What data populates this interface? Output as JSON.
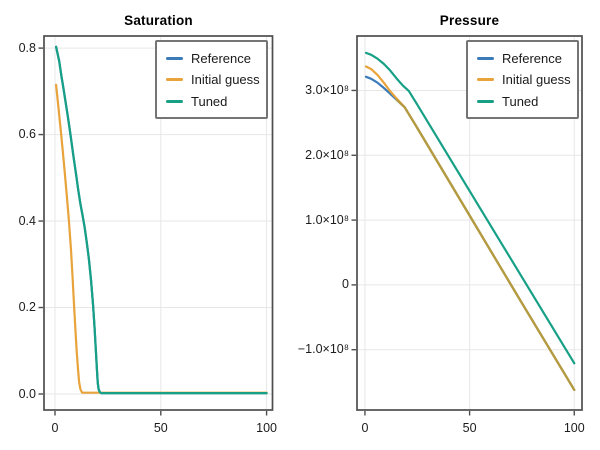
{
  "figure": {
    "background": "#ffffff"
  },
  "colors": {
    "reference": "#3B7BB9",
    "initial_guess": "#E8A33B",
    "tuned": "#17A086",
    "reference_initial_overlap": "#B49B3F",
    "spine": "#4E4E4E",
    "grid": "#E7E7E7",
    "legend_border": "#757575",
    "text": "#1C1C1C"
  },
  "legend": {
    "entries": [
      {
        "label": "Reference",
        "color_key": "reference"
      },
      {
        "label": "Initial guess",
        "color_key": "initial_guess"
      },
      {
        "label": "Tuned",
        "color_key": "tuned"
      }
    ]
  },
  "chart_data": [
    {
      "id": "saturation",
      "type": "line",
      "title": "Saturation",
      "xlabel": "",
      "ylabel": "",
      "xlim": [
        -5.2,
        102.8
      ],
      "ylim": [
        -0.037,
        0.828
      ],
      "grid": true,
      "legend_position": "top-right",
      "xticks": {
        "values": [
          0,
          50,
          100
        ],
        "labels": [
          "0",
          "50",
          "100"
        ]
      },
      "yticks": {
        "values": [
          0,
          0.2,
          0.4,
          0.6,
          0.8
        ],
        "labels": [
          "0.0",
          "0.2",
          "0.4",
          "0.6",
          "0.8"
        ]
      },
      "series": [
        {
          "name": "Reference",
          "color_key": "reference",
          "x": [
            0.5,
            2,
            3,
            4,
            5,
            6,
            7,
            8,
            9,
            10,
            11,
            12,
            13,
            14,
            15,
            16,
            17,
            18,
            18.7,
            19.3,
            19.8,
            20.2,
            20.6,
            21.2,
            22,
            100
          ],
          "y": [
            0.803,
            0.77,
            0.737,
            0.706,
            0.675,
            0.644,
            0.611,
            0.576,
            0.541,
            0.506,
            0.471,
            0.44,
            0.414,
            0.386,
            0.352,
            0.312,
            0.264,
            0.205,
            0.152,
            0.103,
            0.058,
            0.027,
            0.011,
            0.004,
            0.002,
            0.002
          ]
        },
        {
          "name": "Initial guess",
          "color_key": "initial_guess",
          "x": [
            0.5,
            1.5,
            2.5,
            3.5,
            4.5,
            5.5,
            6.5,
            7.5,
            8.3,
            9,
            9.7,
            10.3,
            10.9,
            11.4,
            12,
            12.8,
            100
          ],
          "y": [
            0.715,
            0.668,
            0.62,
            0.571,
            0.519,
            0.464,
            0.404,
            0.337,
            0.269,
            0.207,
            0.146,
            0.095,
            0.055,
            0.028,
            0.011,
            0.003,
            0.003
          ]
        },
        {
          "name": "Tuned",
          "color_key": "tuned",
          "x": [
            0.5,
            2,
            3,
            4,
            5,
            6,
            7,
            8,
            9,
            10,
            11,
            12,
            13,
            14,
            15,
            16,
            17,
            18,
            18.7,
            19.3,
            19.8,
            20.2,
            20.6,
            21.2,
            22,
            100
          ],
          "y": [
            0.803,
            0.77,
            0.737,
            0.706,
            0.675,
            0.644,
            0.611,
            0.576,
            0.541,
            0.506,
            0.471,
            0.44,
            0.414,
            0.386,
            0.352,
            0.312,
            0.264,
            0.205,
            0.152,
            0.103,
            0.058,
            0.027,
            0.011,
            0.004,
            0.002,
            0.002
          ]
        }
      ]
    },
    {
      "id": "pressure",
      "type": "line",
      "title": "Pressure",
      "xlabel": "",
      "ylabel": "",
      "y_unit": "×10⁸",
      "xlim": [
        -3.8,
        103.7
      ],
      "ylim": [
        -1.93,
        3.84
      ],
      "grid": true,
      "legend_position": "top-right",
      "xticks": {
        "values": [
          0,
          50,
          100
        ],
        "labels": [
          "0",
          "50",
          "100"
        ]
      },
      "yticks": {
        "values": [
          -1,
          0,
          1,
          2,
          3
        ],
        "labels": [
          "−1.0×10⁸",
          "0",
          "1.0×10⁸",
          "2.0×10⁸",
          "3.0×10⁸"
        ]
      },
      "overlap": {
        "series": "Reference",
        "start_x": 15,
        "color_key": "reference_initial_overlap",
        "note": "Reference and Initial guess curves coincide beyond x≈15"
      },
      "series": [
        {
          "name": "Reference",
          "color_key": "reference",
          "x": [
            0.5,
            3,
            6,
            9,
            12,
            15,
            19,
            25,
            50,
            75,
            100
          ],
          "y": [
            3.21,
            3.18,
            3.12,
            3.04,
            2.95,
            2.86,
            2.74,
            2.42,
            1.07,
            -0.28,
            -1.62
          ]
        },
        {
          "name": "Initial guess",
          "color_key": "initial_guess",
          "x": [
            0.5,
            3,
            6,
            9,
            12,
            15,
            19,
            25,
            50,
            75,
            100
          ],
          "y": [
            3.37,
            3.33,
            3.24,
            3.12,
            2.99,
            2.88,
            2.74,
            2.42,
            1.07,
            -0.28,
            -1.62
          ]
        },
        {
          "name": "Tuned",
          "color_key": "tuned",
          "x": [
            0.5,
            3,
            6,
            9,
            12,
            15,
            18,
            21,
            25,
            50,
            75,
            100
          ],
          "y": [
            3.58,
            3.55,
            3.49,
            3.41,
            3.31,
            3.19,
            3.08,
            2.99,
            2.78,
            1.45,
            0.12,
            -1.21
          ]
        }
      ]
    }
  ]
}
